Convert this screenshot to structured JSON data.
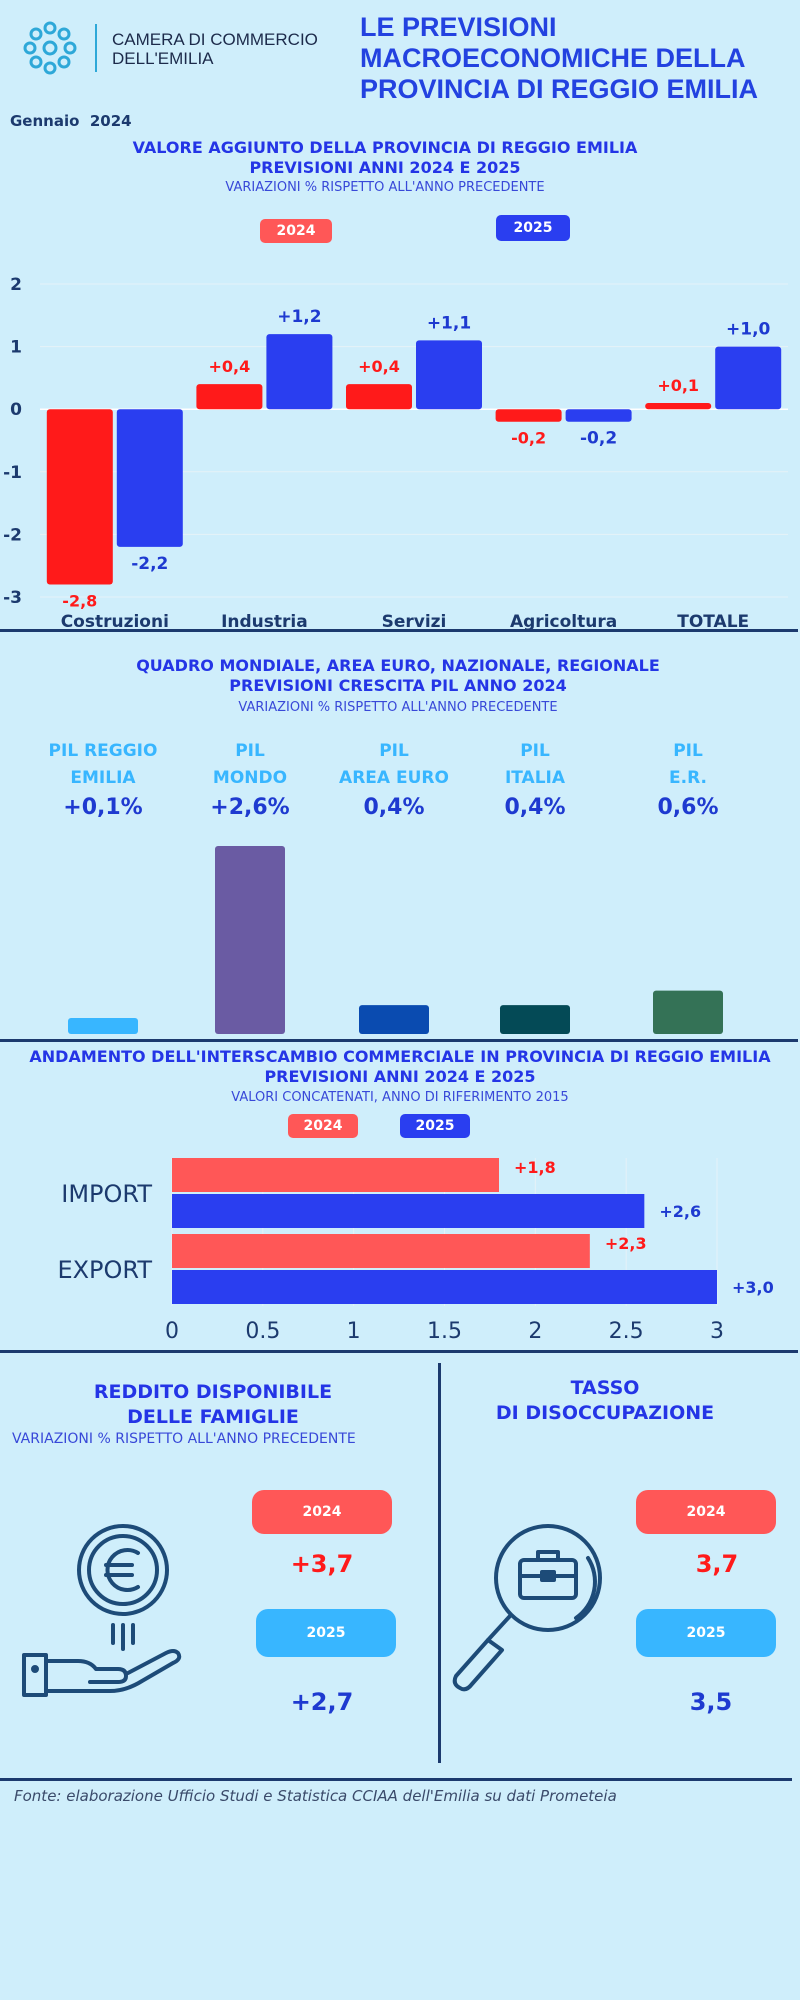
{
  "header": {
    "logo_line1": "CAMERA DI COMMERCIO",
    "logo_line2": "DELL'EMILIA",
    "title_line1": "LE PREVISIONI",
    "title_line2": "MACROECONOMICHE DELLA",
    "title_line3": "PROVINCIA DI REGGIO EMILIA",
    "date": "Gennaio  2024"
  },
  "section1": {
    "title_line1": "VALORE AGGIUNTO DELLA PROVINCIA DI REGGIO EMILIA",
    "title_line2": "PREVISIONI ANNI 2024 E 2025",
    "subtitle": "VARIAZIONI % RISPETTO ALL'ANNO PRECEDENTE"
  },
  "section2": {
    "title_line1": "QUADRO MONDIALE, AREA EURO, NAZIONALE, REGIONALE",
    "title_line2": "PREVISIONI CRESCITA PIL ANNO 2024",
    "subtitle": "VARIAZIONI % RISPETTO ALL'ANNO PRECEDENTE"
  },
  "section3": {
    "title_line1": "ANDAMENTO DELL'INTERSCAMBIO COMMERCIALE IN PROVINCIA DI REGGIO EMILIA",
    "title_line2": "PREVISIONI ANNI  2024 E 2025",
    "subtitle": "VALORI CONCATENATI, ANNO DI RIFERIMENTO 2015"
  },
  "reddito": {
    "title_line1": "REDDITO DISPONIBILE",
    "title_line2": "DELLE FAMIGLIE",
    "subtitle": "VARIAZIONI % RISPETTO ALL'ANNO PRECEDENTE",
    "label_2024": "2024",
    "value_2024": "+3,7",
    "label_2025": "2025",
    "value_2025": "+2,7"
  },
  "disoccupazione": {
    "title_line1": "TASSO",
    "title_line2": "DI DISOCCUPAZIONE",
    "label_2024": "2024",
    "value_2024": "3,7",
    "label_2025": "2025",
    "value_2025": "3,5"
  },
  "footer": {
    "source": "Fonte: elaborazione Ufficio Studi e Statistica CCIAA dell'Emilia su dati Prometeia"
  },
  "colors": {
    "red": "#ff1a1a",
    "blue": "#2a3ef0",
    "light_red": "#ff5757",
    "light_blue": "#38b6ff"
  },
  "icons": [
    "logo-icon",
    "euro-coin-hand-icon",
    "magnifier-briefcase-icon"
  ],
  "chart_data": [
    {
      "type": "bar",
      "categories": [
        "Costruzioni",
        "Industria",
        "Servizi",
        "Agricoltura",
        "TOTALE"
      ],
      "series": [
        {
          "name": "2024",
          "values": [
            -2.8,
            0.4,
            0.4,
            -0.2,
            0.1
          ],
          "labels": [
            "-2,8",
            "+0,4",
            "+0,4",
            "-0,2",
            "+0,1"
          ]
        },
        {
          "name": "2025",
          "values": [
            -2.2,
            1.2,
            1.1,
            -0.2,
            1.0
          ],
          "labels": [
            "-2,2",
            "+1,2",
            "+1,1",
            "-0,2",
            "+1,0"
          ]
        }
      ],
      "ylim": [
        -3,
        2
      ],
      "yticks": [
        2,
        1,
        0,
        -1,
        -2,
        -3
      ],
      "ytick_labels": [
        "2",
        "1",
        "0",
        "-1",
        "-2",
        "-3"
      ],
      "legend_position": "top-center",
      "grid": true
    },
    {
      "type": "bar",
      "categories": [
        "PIL REGGIO EMILIA",
        "PIL MONDO",
        "PIL AREA EURO",
        "PIL ITALIA",
        "PIL E.R."
      ],
      "label_lines": [
        [
          "PIL REGGIO",
          "EMILIA"
        ],
        [
          "PIL",
          "MONDO"
        ],
        [
          "PIL",
          "AREA EURO"
        ],
        [
          "PIL",
          "ITALIA"
        ],
        [
          "PIL",
          "E.R."
        ]
      ],
      "values": [
        0.1,
        2.6,
        0.4,
        0.4,
        0.6
      ],
      "value_labels": [
        "+0,1%",
        "+2,6%",
        "0,4%",
        "0,4%",
        "0,6%"
      ],
      "colors": [
        "#38b6ff",
        "#6a5ba3",
        "#0a4bb0",
        "#044a56",
        "#347256"
      ]
    },
    {
      "type": "bar",
      "orientation": "horizontal",
      "categories": [
        "IMPORT",
        "EXPORT"
      ],
      "series": [
        {
          "name": "2024",
          "values": [
            1.8,
            2.3
          ],
          "labels": [
            "+1,8",
            "+2,3"
          ]
        },
        {
          "name": "2025",
          "values": [
            2.6,
            3.0
          ],
          "labels": [
            "+2,6",
            "+3,0"
          ]
        }
      ],
      "xlim": [
        0,
        3
      ],
      "xticks": [
        0,
        0.5,
        1,
        1.5,
        2,
        2.5,
        3
      ],
      "xtick_labels": [
        "0",
        "0.5",
        "1",
        "1.5",
        "2",
        "2.5",
        "3"
      ],
      "legend_position": "top-center",
      "grid": true
    }
  ]
}
